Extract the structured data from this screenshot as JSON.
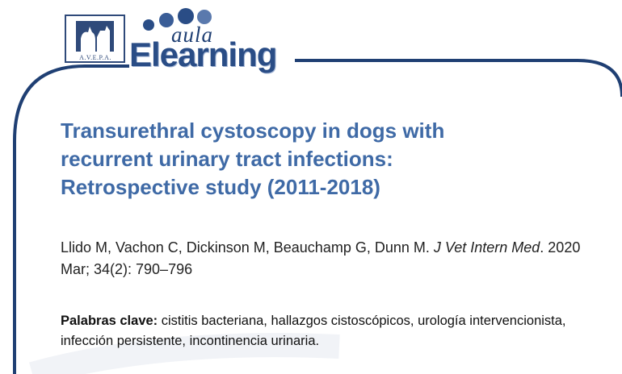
{
  "header": {
    "logo_caption": "A.V.E.P.A.",
    "brand_script": "aula",
    "brand_main": "Elearning",
    "colors": {
      "frame": "#1f3f73",
      "brand": "#2a4d86",
      "title": "#3f6aa6",
      "dots": "#2a4d86"
    }
  },
  "article": {
    "title_lines": [
      "Transurethral cystoscopy in dogs with",
      "recurrent urinary tract infections:",
      "Retrospective study (2011-2018)"
    ],
    "authors": "Llido M, Vachon C, Dickinson M, Beauchamp G, Dunn M.",
    "journal": "J Vet Intern Med",
    "citation_details": ". 2020 Mar; 34(2): 790–796",
    "keywords_label": "Palabras clave:",
    "keywords_text": " cistitis bacteriana, hallazgos cistoscópicos, urología intervencionista, infección persistente, incontinencia urinaria."
  }
}
